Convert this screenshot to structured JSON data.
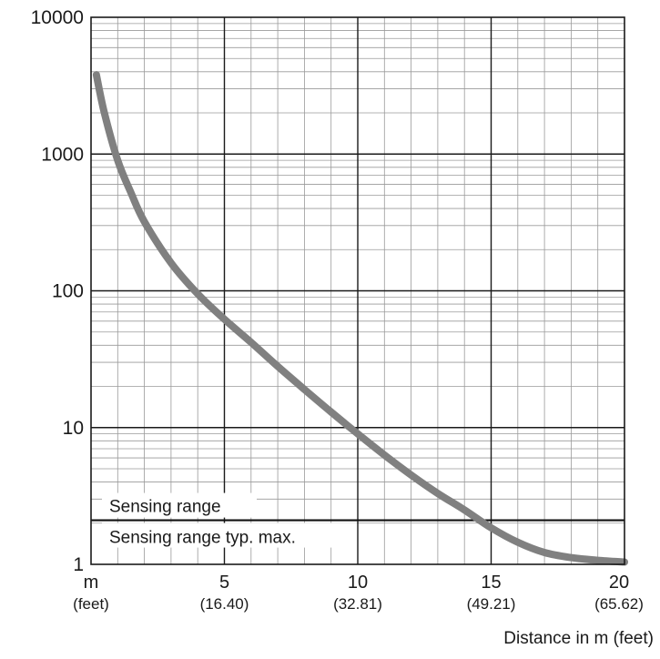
{
  "chart_data": {
    "type": "line",
    "title": "",
    "xlabel": "Distance in m (feet)",
    "ylabel": "",
    "xlim": [
      0,
      20
    ],
    "ylim": [
      1,
      10000
    ],
    "yscale": "log",
    "grid": true,
    "y_ticks": [
      {
        "value": 1,
        "label": "1"
      },
      {
        "value": 10,
        "label": "10"
      },
      {
        "value": 100,
        "label": "100"
      },
      {
        "value": 1000,
        "label": "1000"
      },
      {
        "value": 10000,
        "label": "10000"
      }
    ],
    "x_ticks": [
      {
        "value": 0,
        "label": "m",
        "sublabel": "(feet)"
      },
      {
        "value": 5,
        "label": "5",
        "sublabel": "(16.40)"
      },
      {
        "value": 10,
        "label": "10",
        "sublabel": "(32.81)"
      },
      {
        "value": 15,
        "label": "15",
        "sublabel": "(49.21)"
      },
      {
        "value": 20,
        "label": "20",
        "sublabel": "(65.62)"
      }
    ],
    "threshold": {
      "value": 2.1,
      "label_above": "Sensing range",
      "label_below": "Sensing range typ. max."
    },
    "series": [
      {
        "color": "#808080",
        "x": [
          0.2,
          0.5,
          1.0,
          1.5,
          2.0,
          3.0,
          4.0,
          5.0,
          6.0,
          7.0,
          8.0,
          9.0,
          10.0,
          11.0,
          12.0,
          13.0,
          14.0,
          15.0,
          16.0,
          17.0,
          18.0,
          19.0,
          20.0
        ],
        "y": [
          3800,
          2000,
          900,
          520,
          320,
          160,
          95,
          62,
          42,
          28,
          19,
          13,
          9,
          6.3,
          4.5,
          3.3,
          2.5,
          1.85,
          1.45,
          1.22,
          1.12,
          1.07,
          1.04
        ]
      }
    ]
  }
}
